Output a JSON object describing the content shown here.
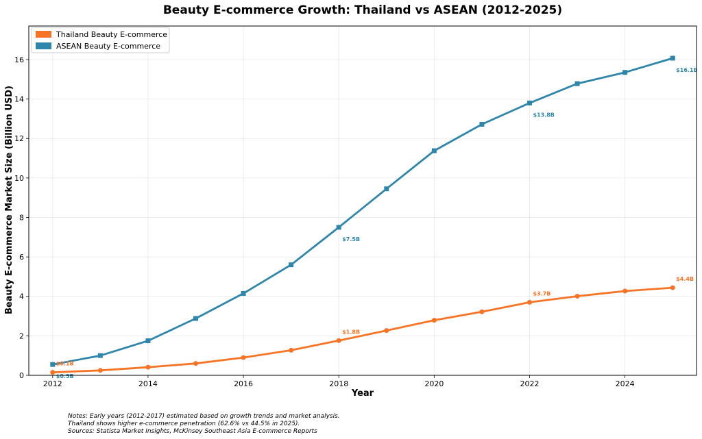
{
  "chart_data": {
    "type": "line",
    "title": "Beauty E-commerce Growth: Thailand vs ASEAN (2012-2025)",
    "xlabel": "Year",
    "ylabel": "Beauty E-commerce Market Size (Billion USD)",
    "x": [
      2012,
      2013,
      2014,
      2015,
      2016,
      2017,
      2018,
      2019,
      2020,
      2021,
      2022,
      2023,
      2024,
      2025
    ],
    "xlim": [
      2011.5,
      2025.5
    ],
    "ylim": [
      0,
      17.7
    ],
    "xticks": [
      "2012",
      "2014",
      "2016",
      "2018",
      "2020",
      "2022",
      "2024"
    ],
    "yticks": [
      "0",
      "2",
      "4",
      "6",
      "8",
      "10",
      "12",
      "14",
      "16"
    ],
    "grid": true,
    "legend_position": "top-left",
    "series": [
      {
        "name": "Thailand Beauty E-commerce",
        "color": "#F97325",
        "marker": "circle",
        "values": [
          0.15,
          0.25,
          0.41,
          0.6,
          0.9,
          1.27,
          1.76,
          2.27,
          2.79,
          3.22,
          3.7,
          4.01,
          4.27,
          4.44
        ],
        "annotations": [
          {
            "x": 2012,
            "y": 0.15,
            "label": "$0.1B"
          },
          {
            "x": 2018,
            "y": 1.76,
            "label": "$1.8B"
          },
          {
            "x": 2022,
            "y": 3.7,
            "label": "$3.7B"
          },
          {
            "x": 2025,
            "y": 4.44,
            "label": "$4.4B"
          }
        ]
      },
      {
        "name": "ASEAN Beauty E-commerce",
        "color": "#2E86AB",
        "marker": "square",
        "values": [
          0.55,
          1.0,
          1.75,
          2.88,
          4.15,
          5.6,
          7.5,
          9.45,
          11.38,
          12.72,
          13.8,
          14.78,
          15.35,
          16.07
        ],
        "annotations": [
          {
            "x": 2012,
            "y": 0.55,
            "label": "$0.5B"
          },
          {
            "x": 2018,
            "y": 7.5,
            "label": "$7.5B"
          },
          {
            "x": 2022,
            "y": 13.8,
            "label": "$13.8B"
          },
          {
            "x": 2025,
            "y": 16.07,
            "label": "$16.1B"
          }
        ]
      }
    ],
    "notes": [
      "Notes: Early years (2012-2017) estimated based on growth trends and market analysis.",
      "Thailand shows higher e-commerce penetration (62.6% vs 44.5% in 2025).",
      "Sources: Statista Market Insights, McKinsey Southeast Asia E-commerce Reports"
    ]
  }
}
